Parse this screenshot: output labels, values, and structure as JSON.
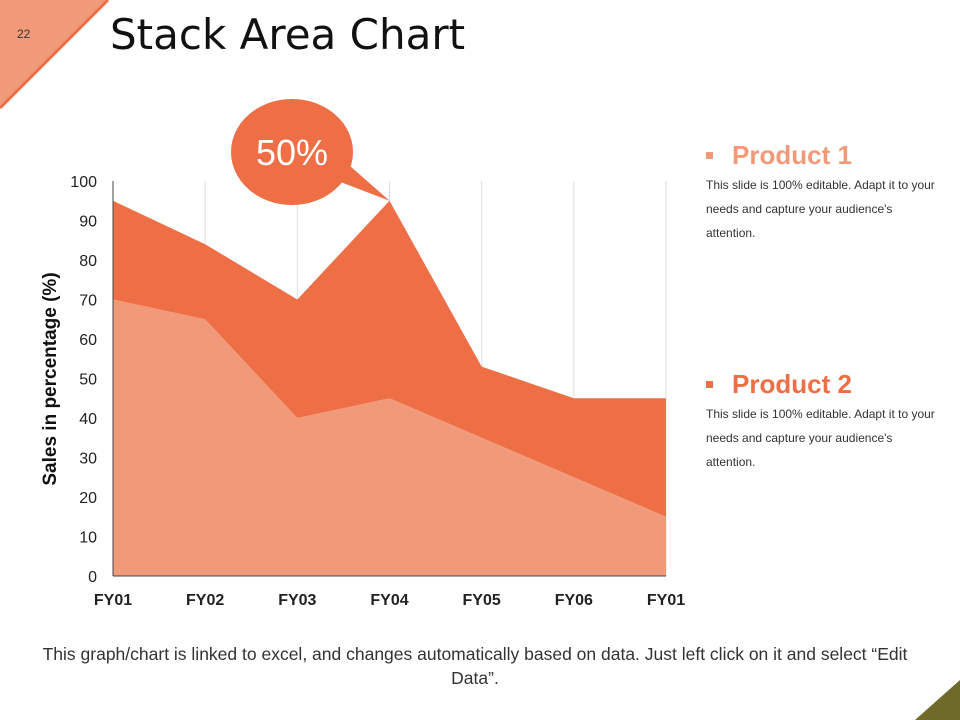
{
  "slide": {
    "number": "22",
    "title": "Stack Area Chart"
  },
  "colors": {
    "accent": "#ee6e45",
    "light": "#f19a7a",
    "olive": "#6e6a2a"
  },
  "callout": {
    "text": "50%"
  },
  "legend": [
    {
      "name": "Product 1",
      "description": "This slide is 100% editable. Adapt it to your needs and capture your audience's attention."
    },
    {
      "name": "Product 2",
      "description": "This slide is 100% editable. Adapt it to your needs and capture your audience's attention."
    }
  ],
  "footer": {
    "text": "This graph/chart is linked to excel, and changes automatically based on data. Just left click on it and select “Edit Data”."
  },
  "chart_data": {
    "type": "area",
    "stacked": true,
    "categories": [
      "FY01",
      "FY02",
      "FY03",
      "FY04",
      "FY05",
      "FY06",
      "FY01"
    ],
    "series": [
      {
        "name": "Product 1",
        "color": "#f19a7a",
        "values": [
          70,
          65,
          40,
          45,
          35,
          25,
          15
        ]
      },
      {
        "name": "Product 2",
        "color": "#ee6e45",
        "values": [
          25,
          19,
          30,
          50,
          18,
          20,
          30
        ]
      }
    ],
    "ylabel": "Sales in percentage (%)",
    "ylim": [
      0,
      100
    ],
    "yticks": [
      0,
      10,
      20,
      30,
      40,
      50,
      60,
      70,
      80,
      90,
      100
    ],
    "grid": "vertical"
  }
}
